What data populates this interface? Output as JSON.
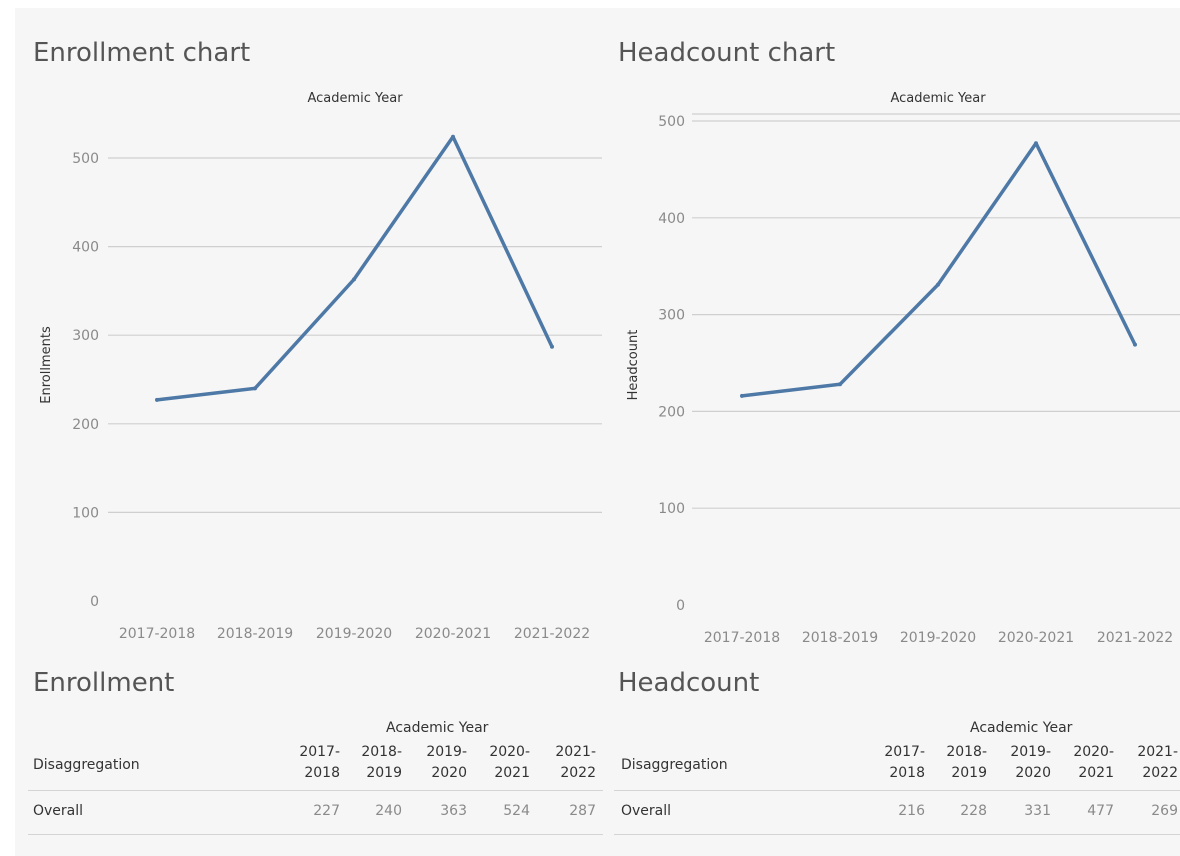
{
  "enrollment_chart": {
    "title": "Enrollment chart",
    "xlabel": "Academic Year",
    "ylabel": "Enrollments"
  },
  "headcount_chart": {
    "title": "Headcount chart",
    "xlabel": "Academic Year",
    "ylabel": "Headcount"
  },
  "chart_data": [
    {
      "type": "line",
      "title": "Enrollment chart",
      "xlabel": "Academic Year",
      "ylabel": "Enrollments",
      "categories": [
        "2017-2018",
        "2018-2019",
        "2019-2020",
        "2020-2021",
        "2021-2022"
      ],
      "values": [
        227,
        240,
        363,
        524,
        287
      ],
      "ylim": [
        0,
        550
      ],
      "yticks": [
        0,
        100,
        200,
        300,
        400,
        500
      ],
      "grid": true,
      "color": "#4e79a7"
    },
    {
      "type": "line",
      "title": "Headcount chart",
      "xlabel": "Academic Year",
      "ylabel": "Headcount",
      "categories": [
        "2017-2018",
        "2018-2019",
        "2019-2020",
        "2020-2021",
        "2021-2022"
      ],
      "values": [
        216,
        228,
        331,
        477,
        269
      ],
      "ylim": [
        0,
        505
      ],
      "yticks": [
        0,
        100,
        200,
        300,
        400,
        500
      ],
      "grid": true,
      "color": "#4e79a7"
    }
  ],
  "enrollment_table": {
    "title": "Enrollment",
    "column_group": "Academic Year",
    "row_header": "Disaggregation",
    "columns": [
      {
        "line1": "2017-",
        "line2": "2018"
      },
      {
        "line1": "2018-",
        "line2": "2019"
      },
      {
        "line1": "2019-",
        "line2": "2020"
      },
      {
        "line1": "2020-",
        "line2": "2021"
      },
      {
        "line1": "2021-",
        "line2": "2022"
      }
    ],
    "rows": [
      {
        "label": "Overall",
        "values": [
          "227",
          "240",
          "363",
          "524",
          "287"
        ]
      }
    ]
  },
  "headcount_table": {
    "title": "Headcount",
    "column_group": "Academic Year",
    "row_header": "Disaggregation",
    "columns": [
      {
        "line1": "2017-",
        "line2": "2018"
      },
      {
        "line1": "2018-",
        "line2": "2019"
      },
      {
        "line1": "2019-",
        "line2": "2020"
      },
      {
        "line1": "2020-",
        "line2": "2021"
      },
      {
        "line1": "2021-",
        "line2": "2022"
      }
    ],
    "rows": [
      {
        "label": "Overall",
        "values": [
          "216",
          "228",
          "331",
          "477",
          "269"
        ]
      }
    ]
  }
}
